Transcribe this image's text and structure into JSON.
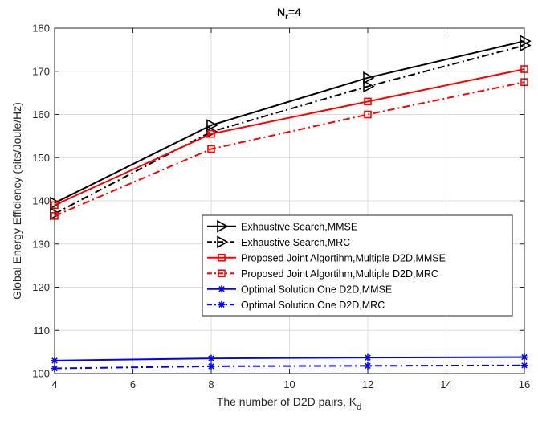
{
  "chart_data": {
    "type": "line",
    "title": "N",
    "title_sub": "r",
    "title_suffix": "=4",
    "xlabel": "The number of D2D pairs, K",
    "xlabel_sub": "d",
    "ylabel": "Global Energy Efficiency (bits/Joule/Hz)",
    "xlim": [
      4,
      16
    ],
    "ylim": [
      100,
      180
    ],
    "xticks": [
      4,
      6,
      8,
      10,
      12,
      14,
      16
    ],
    "yticks": [
      100,
      110,
      120,
      130,
      140,
      150,
      160,
      170,
      180
    ],
    "grid": true,
    "legend_position": "center-right",
    "x": [
      4,
      8,
      12,
      16
    ],
    "series": [
      {
        "name": "Exhaustive Search,MMSE",
        "values": [
          139.5,
          157.5,
          168.5,
          177
        ],
        "color": "#000000",
        "dash": "solid",
        "marker": "triangle-right"
      },
      {
        "name": "Exhaustive Search,MRC",
        "values": [
          137,
          156,
          166.5,
          176
        ],
        "color": "#000000",
        "dash": "dashdot",
        "marker": "triangle-right"
      },
      {
        "name": "Proposed Joint Algortihm,Multiple D2D,MMSE",
        "values": [
          139,
          155.5,
          163,
          170.5
        ],
        "color": "#ff0000",
        "dash": "solid",
        "marker": "square"
      },
      {
        "name": "Proposed Joint Algortihm,Multiple D2D,MRC",
        "values": [
          136.5,
          152,
          160,
          167.5
        ],
        "color": "#ff0000",
        "dash": "dashdot",
        "marker": "square"
      },
      {
        "name": "Optimal Solution,One D2D,MMSE",
        "values": [
          103,
          103.5,
          103.7,
          103.8
        ],
        "color": "#0000ff",
        "dash": "solid",
        "marker": "star"
      },
      {
        "name": "Optimal Solution,One D2D,MRC",
        "values": [
          101.2,
          101.7,
          101.8,
          101.9
        ],
        "color": "#0000ff",
        "dash": "dashdot",
        "marker": "star"
      }
    ]
  }
}
